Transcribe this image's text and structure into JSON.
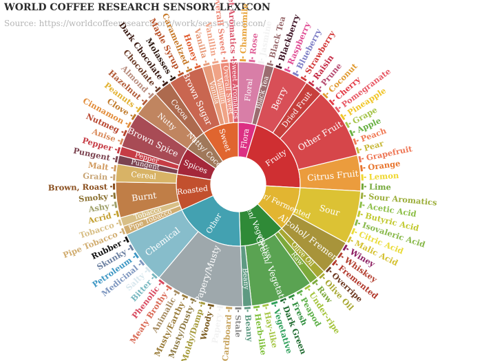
{
  "chart_data": {
    "type": "sunburst",
    "title": "WORLD COFFEE RESEARCH SENSORY LEXICON",
    "subtitle": "Source: https://worldcoffeeresearch.org/work/sensory-lexicon/",
    "colors": {
      "separator": "#ffffff"
    },
    "categories": [
      {
        "name": "Floral",
        "color": "#dc2f83",
        "label": "Flora",
        "children": [
          {
            "name": "Floral",
            "color": "#d87ea7",
            "leaves": [
              {
                "name": "Chamomile",
                "color": "#e8a33a"
              },
              {
                "name": "Rose",
                "color": "#e0649a"
              },
              {
                "name": "Jasmine",
                "color": "#f2f2f2"
              }
            ]
          },
          {
            "name": "Black Tea",
            "color": "#9a6c6f",
            "leaves": [
              {
                "name": "Black Tea",
                "color": "#9a6c6f"
              }
            ]
          }
        ]
      },
      {
        "name": "Fruity",
        "color": "#cf2f32",
        "label": "Fruity",
        "children": [
          {
            "name": "Berry",
            "color": "#d84f57",
            "leaves": [
              {
                "name": "Blackberry",
                "color": "#3d1224"
              },
              {
                "name": "Raspberry",
                "color": "#e04f95"
              },
              {
                "name": "Blueberry",
                "color": "#7f7fc6"
              },
              {
                "name": "Strawberry",
                "color": "#d33a3a"
              }
            ]
          },
          {
            "name": "Dried Fruit",
            "color": "#c73f3c",
            "leaves": [
              {
                "name": "Raisin",
                "color": "#c52a44"
              },
              {
                "name": "Prune",
                "color": "#b64a70"
              }
            ]
          },
          {
            "name": "Other Fruit",
            "color": "#d6464a",
            "leaves": [
              {
                "name": "Coconut",
                "color": "#e09a30"
              },
              {
                "name": "Cherry",
                "color": "#e33b46"
              },
              {
                "name": "Pomegranate",
                "color": "#e85a66"
              },
              {
                "name": "Pineapple",
                "color": "#f0c528"
              },
              {
                "name": "Grape",
                "color": "#a5c44a"
              },
              {
                "name": "Apple",
                "color": "#68b042"
              },
              {
                "name": "Peach",
                "color": "#f07a55"
              },
              {
                "name": "Pear",
                "color": "#c8b93a"
              }
            ]
          },
          {
            "name": "Citrus Fruit",
            "color": "#eb9c3d",
            "leaves": [
              {
                "name": "Grapefruit",
                "color": "#ee7655"
              },
              {
                "name": "Orange",
                "color": "#e8752d"
              },
              {
                "name": "Lemon",
                "color": "#efd72d"
              },
              {
                "name": "Lime",
                "color": "#73a839"
              }
            ]
          }
        ]
      },
      {
        "name": "Sour/Fermented",
        "color": "#e2b531",
        "label": "Sour/ Fermented",
        "children": [
          {
            "name": "Sour",
            "color": "#dcc234",
            "leaves": [
              {
                "name": "Sour Aromatics",
                "color": "#9cae3a"
              },
              {
                "name": "Acetic Acid",
                "color": "#8dbf48"
              },
              {
                "name": "Butyric Acid",
                "color": "#c1c92f"
              },
              {
                "name": "Isovaleric Acid",
                "color": "#88b84a"
              },
              {
                "name": "Citric Acid",
                "color": "#eadc3a"
              },
              {
                "name": "Malic Acid",
                "color": "#d4c132"
              }
            ]
          },
          {
            "name": "Alcohol/ Fremented",
            "color": "#a8943a",
            "leaves": [
              {
                "name": "Winey",
                "color": "#8c1e61"
              },
              {
                "name": "Whiskey",
                "color": "#b23f2f"
              },
              {
                "name": "Fremented",
                "color": "#b1382b"
              },
              {
                "name": "Overripe",
                "color": "#6d3a22"
              }
            ]
          }
        ]
      },
      {
        "name": "Green/Vegetative",
        "color": "#2f8a37",
        "label": "Green/ Vegetative",
        "children": [
          {
            "name": "Olive Oil",
            "color": "#a8a833",
            "leaves": [
              {
                "name": "Olive Oil",
                "color": "#a8a833"
              }
            ]
          },
          {
            "name": "Raw",
            "color": "#7ca93b",
            "leaves": [
              {
                "name": "Raw",
                "color": "#7ca93b"
              }
            ]
          },
          {
            "name": "Green/ Vegetative",
            "color": "#5aa352",
            "leaves": [
              {
                "name": "Under-ripe",
                "color": "#a4c43b"
              },
              {
                "name": "Peapod",
                "color": "#5fb14a"
              },
              {
                "name": "Fresh",
                "color": "#2f8f3d"
              },
              {
                "name": "Dark Green",
                "color": "#1e6a2e"
              },
              {
                "name": "Vegetative",
                "color": "#2fa05a"
              },
              {
                "name": "Hay-like",
                "color": "#a8c84a"
              },
              {
                "name": "Herb-like",
                "color": "#7ec03a"
              }
            ]
          },
          {
            "name": "Beany",
            "color": "#5e9a82",
            "leaves": [
              {
                "name": "Beany",
                "color": "#5e9a82"
              }
            ]
          }
        ]
      },
      {
        "name": "Other",
        "color": "#43a1b1",
        "label": "Other",
        "children": [
          {
            "name": "Papery/Musty",
            "color": "#9ea8ac",
            "leaves": [
              {
                "name": "Stale",
                "color": "#8a8a8a"
              },
              {
                "name": "Cardboard",
                "color": "#c7a45f"
              },
              {
                "name": "Papery",
                "color": "#f2f2f2"
              },
              {
                "name": "Woody",
                "color": "#7a5a1e"
              },
              {
                "name": "Moldy/Damp",
                "color": "#a59a3a"
              },
              {
                "name": "Musty/Dusty",
                "color": "#8f7b45"
              },
              {
                "name": "Musty/Earthy",
                "color": "#9a7c3a"
              },
              {
                "name": "Animalic",
                "color": "#a58a5f"
              },
              {
                "name": "Meaty Brothy",
                "color": "#d96a55"
              },
              {
                "name": "Phenolic",
                "color": "#d8495e"
              }
            ]
          },
          {
            "name": "Chemical",
            "color": "#87bdcb",
            "leaves": [
              {
                "name": "Bitter",
                "color": "#76b7bf"
              },
              {
                "name": "Salty",
                "color": "#d9e8ee"
              },
              {
                "name": "Medicinal",
                "color": "#7d96bf"
              },
              {
                "name": "Petroleum",
                "color": "#3d97c4"
              },
              {
                "name": "Skunky",
                "color": "#6a7fa0"
              },
              {
                "name": "Rubber",
                "color": "#111111"
              }
            ]
          }
        ]
      },
      {
        "name": "Roasted",
        "color": "#c2502e",
        "label": "Roasted",
        "children": [
          {
            "name": "Pipe Tobacco",
            "color": "#d1ad70",
            "leaves": [
              {
                "name": "Pipe Tobacco",
                "color": "#d1ad70"
              }
            ]
          },
          {
            "name": "Tobacco",
            "color": "#d8bf86",
            "leaves": [
              {
                "name": "Tobacco",
                "color": "#d8bf86"
              }
            ]
          },
          {
            "name": "Burnt",
            "color": "#c07e47",
            "leaves": [
              {
                "name": "Acrid",
                "color": "#c29f30"
              },
              {
                "name": "Ashy",
                "color": "#9fa06a"
              },
              {
                "name": "Smoky",
                "color": "#8a7030"
              },
              {
                "name": "Brown, Roast",
                "color": "#8a4f1f"
              }
            ]
          },
          {
            "name": "Cereal",
            "color": "#d8b366",
            "leaves": [
              {
                "name": "Grain",
                "color": "#c8a474"
              },
              {
                "name": "Malt",
                "color": "#d19a5e"
              }
            ]
          }
        ]
      },
      {
        "name": "Spices",
        "color": "#a4283a",
        "label": "Spices",
        "children": [
          {
            "name": "Pungent",
            "color": "#7b4350",
            "leaves": [
              {
                "name": "Pungent",
                "color": "#7b4350"
              }
            ]
          },
          {
            "name": "Pepper",
            "color": "#c63c45",
            "leaves": [
              {
                "name": "Pepper",
                "color": "#c63c45"
              }
            ]
          },
          {
            "name": "Brown Spice",
            "color": "#a84b55",
            "leaves": [
              {
                "name": "Anise",
                "color": "#d98a5a"
              },
              {
                "name": "Nutmeg",
                "color": "#b8452e"
              },
              {
                "name": "Cinnamon",
                "color": "#e28b38"
              },
              {
                "name": "Clove",
                "color": "#c07a2a"
              }
            ]
          }
        ]
      },
      {
        "name": "Nutty/Cocoa",
        "color": "#a0785a",
        "label": "Nutty/ Cocoa",
        "children": [
          {
            "name": "Nutty",
            "color": "#c08560",
            "leaves": [
              {
                "name": "Peanuts",
                "color": "#e2b130"
              },
              {
                "name": "Hazelnut",
                "color": "#b25a36"
              },
              {
                "name": "Almond",
                "color": "#b88c7d"
              }
            ]
          },
          {
            "name": "Cocoa",
            "color": "#ad6a4e",
            "leaves": [
              {
                "name": "Chocolate",
                "color": "#6b3b27"
              },
              {
                "name": "Dark Chocolate",
                "color": "#3a1a12"
              }
            ]
          }
        ]
      },
      {
        "name": "Sweet",
        "color": "#e0652f",
        "label": "Sweet",
        "children": [
          {
            "name": "Brown Sugar",
            "color": "#c96650",
            "leaves": [
              {
                "name": "Molasses",
                "color": "#2e1a12"
              },
              {
                "name": "Maple Syrup",
                "color": "#b9522a"
              },
              {
                "name": "Caramelized",
                "color": "#c77a2a"
              },
              {
                "name": "Honey",
                "color": "#e05c2f"
              }
            ]
          },
          {
            "name": "Vanilla",
            "color": "#e79b7a",
            "leaves": [
              {
                "name": "Vanilla",
                "color": "#e79b7a"
              }
            ]
          },
          {
            "name": "Vanillin",
            "color": "#f0a386",
            "leaves": [
              {
                "name": "Vanillin",
                "color": "#f0a386"
              }
            ]
          },
          {
            "name": "Overall Sweet",
            "color": "#ed8a78",
            "leaves": [
              {
                "name": "Overall Sweet",
                "color": "#ed8a78"
              }
            ]
          },
          {
            "name": "Sweet Aromatics",
            "color": "#db5a6f",
            "leaves": [
              {
                "name": "Sweet Aromatics",
                "color": "#db5a6f"
              }
            ]
          }
        ]
      }
    ]
  }
}
